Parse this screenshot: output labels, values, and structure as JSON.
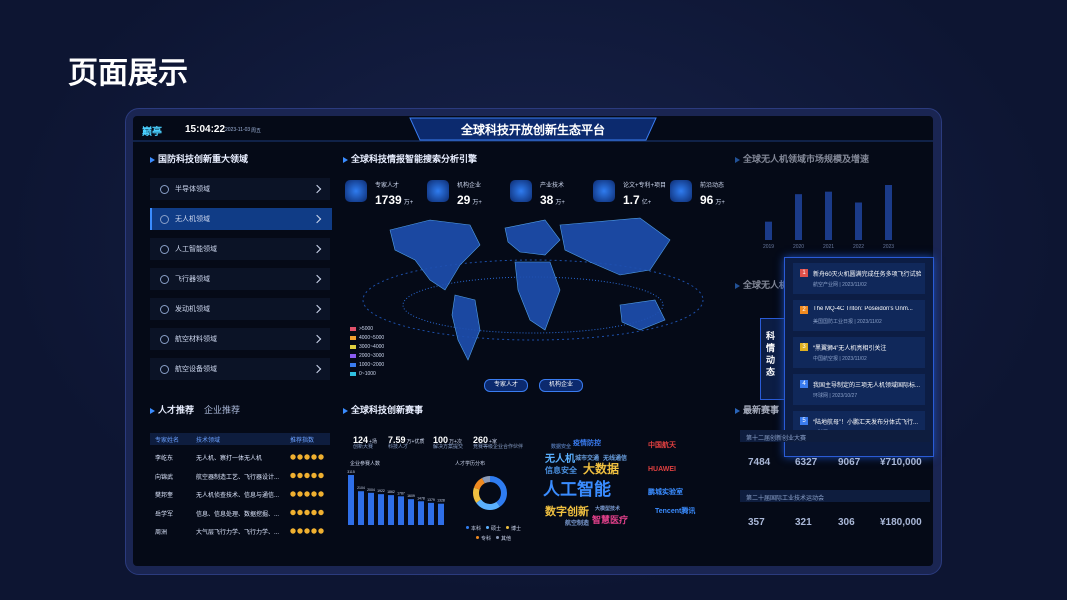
{
  "page_title": "页面展示",
  "header": {
    "logo": "巅亭",
    "time": "15:04:22",
    "date": "2023-11-03",
    "weekday": "周五",
    "title": "全球科技开放创新生态平台"
  },
  "domains": {
    "title": "国防科技创新重大领域",
    "items": [
      "半导体领域",
      "无人机领域",
      "人工智能领域",
      "飞行器领域",
      "发动机领域",
      "航空材料领域",
      "航空设备领域"
    ]
  },
  "search": {
    "title": "全球科技情报智能搜索分析引擎",
    "stats": [
      {
        "label": "专家人才",
        "value": 1739,
        "unit": "万+"
      },
      {
        "label": "机构企业",
        "value": 29,
        "unit": "万+"
      },
      {
        "label": "产业技术",
        "value": 38,
        "unit": "万+"
      },
      {
        "label": "论文+专利+项目",
        "value": 1.7,
        "unit": "亿+"
      },
      {
        "label": "前沿动态",
        "value": 96,
        "unit": "万+"
      }
    ],
    "legend": [
      {
        "label": ">5000",
        "color": "#e0506a"
      },
      {
        "label": "4000~5000",
        "color": "#f0a030"
      },
      {
        "label": "3000~4000",
        "color": "#e0d040"
      },
      {
        "label": "2000~3000",
        "color": "#8a5cf0"
      },
      {
        "label": "1000~2000",
        "color": "#3a7cf0"
      },
      {
        "label": "0~1000",
        "color": "#30c0e0"
      }
    ],
    "buttons": [
      "专家人才",
      "机构企业"
    ]
  },
  "market": {
    "title": "全球无人机领域市场规模及增速",
    "subtitle": "全球无人机",
    "categories": [
      "2019",
      "2020",
      "2021",
      "2022",
      "2023"
    ],
    "values": [
      22,
      55,
      58,
      45,
      66
    ],
    "color": "#2a5bd6"
  },
  "news": {
    "tab": "科情动态",
    "items": [
      {
        "no": 1,
        "title": "新舟60灭火机圆满完成任务多项飞行试验",
        "source": "航空产业网 | 2023/11/02",
        "color": "#e0504a"
      },
      {
        "no": 2,
        "title": "The MQ-4C Triton: Poseidon's Unm...",
        "source": "美国国防工业日报 | 2023/11/02",
        "color": "#f08a20"
      },
      {
        "no": 3,
        "title": "“黑翼狮4”无人机亮相引关注",
        "source": "中国航空报 | 2023/11/02",
        "color": "#e0b020"
      },
      {
        "no": 4,
        "title": "我国主导制定的三项无人机领域国际标...",
        "source": "环球网 | 2023/10/27",
        "color": "#3a7cf0"
      },
      {
        "no": 5,
        "title": "“陆地航母”！小鹏汇天发布分体式飞行...",
        "source": "环球网 | 2023/10/24",
        "color": "#3a7cf0"
      }
    ]
  },
  "talent": {
    "tabs": [
      "人才推荐",
      "企业推荐"
    ],
    "headers": [
      "专家姓名",
      "技术领域",
      "推荐指数"
    ],
    "rows": [
      {
        "name": "李屹东",
        "field": "无人机、察打一体无人机",
        "rating": 5
      },
      {
        "name": "向锦武",
        "field": "航空器制造工艺、飞行器设计...",
        "rating": 5
      },
      {
        "name": "樊邦奎",
        "field": "无人机侦查技术、信息与通信...",
        "rating": 5
      },
      {
        "name": "岳学军",
        "field": "信息、信息处理、数据挖掘、...",
        "rating": 5
      },
      {
        "name": "周洲",
        "field": "大气层飞行力学、飞行力学、...",
        "rating": 5
      }
    ]
  },
  "events": {
    "title": "全球科技创新赛事",
    "stats": [
      {
        "value": 124,
        "unit": "+场",
        "label": "创新大赛"
      },
      {
        "value": 7.59,
        "unit": "万+优质",
        "label": "科技人才"
      },
      {
        "value": 100,
        "unit": "万+次",
        "label": "解决方案提交"
      },
      {
        "value": 260,
        "unit": "+家",
        "label": "竞赛等级企业合作伙伴"
      }
    ],
    "participants": {
      "title": "企业参赛人数",
      "values": [
        3115,
        2104,
        2004,
        1922,
        1862,
        1787,
        1609,
        1478,
        1379,
        1328
      ],
      "color": "#2f6fe8"
    },
    "education": {
      "title": "人才学历分布",
      "series": [
        {
          "name": "本科",
          "value": 40,
          "color": "#2f7cf0"
        },
        {
          "name": "硕士",
          "value": 25,
          "color": "#5ab0ff"
        },
        {
          "name": "博士",
          "value": 15,
          "color": "#f0c040"
        },
        {
          "name": "专科",
          "value": 12,
          "color": "#f08a20"
        },
        {
          "name": "其他",
          "value": 8,
          "color": "#8a9ab8"
        }
      ]
    },
    "keywords": [
      "人工智能",
      "大数据",
      "无人机",
      "数字创新",
      "信息安全",
      "智慧医疗",
      "疫情防控",
      "城市交通",
      "无线通信",
      "航空制造",
      "大模型技术",
      "数据安全"
    ],
    "partners": [
      "中国航天",
      "HUAWEI",
      "鹏城实验室",
      "Tencent腾讯"
    ]
  },
  "latest": {
    "title": "最新赛事",
    "items": [
      {
        "name": "第十二届创新创业大赛",
        "values": [
          "7484",
          "6327",
          "9067",
          "¥710,000"
        ]
      },
      {
        "name": "第二十届国际工业技术运动会",
        "values": [
          "357",
          "321",
          "306",
          "¥180,000"
        ]
      }
    ]
  }
}
